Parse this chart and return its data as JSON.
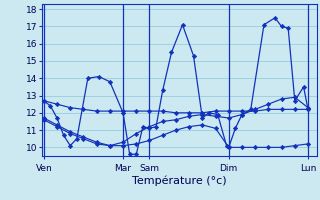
{
  "background_color": "#cce8f0",
  "grid_color": "#99ccdd",
  "line_color": "#1133bb",
  "ylim": [
    9.5,
    18.3
  ],
  "yticks": [
    10,
    11,
    12,
    13,
    14,
    15,
    16,
    17,
    18
  ],
  "xlabel": "Température (°c)",
  "xlabel_fontsize": 8,
  "tick_fontsize": 6.5,
  "day_labels": [
    "Ven",
    "Mar",
    "Sam",
    "Dim",
    "Lun"
  ],
  "day_x": [
    0,
    36,
    48,
    84,
    120
  ],
  "xlim": [
    -1,
    124
  ],
  "series1_x": [
    0,
    3,
    6,
    9,
    12,
    15,
    20,
    25,
    30,
    36,
    39,
    42,
    45,
    48,
    51,
    54,
    58,
    63,
    68,
    72,
    75,
    79,
    83,
    84,
    87,
    90,
    94,
    100,
    105,
    108,
    111,
    114,
    118,
    120
  ],
  "series1_y": [
    12.7,
    12.4,
    11.7,
    10.7,
    10.1,
    10.5,
    14.0,
    14.1,
    13.8,
    12.0,
    9.6,
    9.6,
    11.2,
    11.1,
    11.2,
    13.3,
    15.5,
    17.1,
    15.3,
    11.7,
    12.0,
    11.9,
    10.1,
    10.0,
    11.1,
    11.9,
    12.2,
    17.1,
    17.5,
    17.0,
    16.9,
    12.7,
    13.5,
    12.2
  ],
  "series2_x": [
    0,
    6,
    12,
    18,
    24,
    30,
    36,
    42,
    48,
    54,
    60,
    66,
    72,
    78,
    84,
    90,
    96,
    102,
    108,
    114,
    120
  ],
  "series2_y": [
    12.7,
    12.5,
    12.3,
    12.2,
    12.1,
    12.1,
    12.1,
    12.1,
    12.1,
    12.1,
    12.0,
    12.0,
    12.0,
    12.1,
    12.1,
    12.1,
    12.1,
    12.2,
    12.2,
    12.2,
    12.2
  ],
  "series3_x": [
    0,
    6,
    12,
    18,
    24,
    30,
    36,
    42,
    48,
    54,
    60,
    66,
    72,
    78,
    84,
    90,
    96,
    102,
    108,
    114,
    120
  ],
  "series3_y": [
    11.7,
    11.3,
    10.9,
    10.6,
    10.3,
    10.1,
    10.1,
    10.2,
    10.4,
    10.7,
    11.0,
    11.2,
    11.3,
    11.1,
    10.0,
    10.0,
    10.0,
    10.0,
    10.0,
    10.1,
    10.2
  ],
  "series4_x": [
    0,
    6,
    12,
    18,
    24,
    30,
    36,
    42,
    48,
    54,
    60,
    66,
    72,
    78,
    84,
    90,
    96,
    102,
    108,
    114,
    120
  ],
  "series4_y": [
    11.6,
    11.2,
    10.8,
    10.5,
    10.2,
    10.1,
    10.3,
    10.8,
    11.2,
    11.5,
    11.6,
    11.8,
    11.9,
    11.8,
    11.7,
    11.9,
    12.2,
    12.5,
    12.8,
    12.9,
    12.3
  ]
}
